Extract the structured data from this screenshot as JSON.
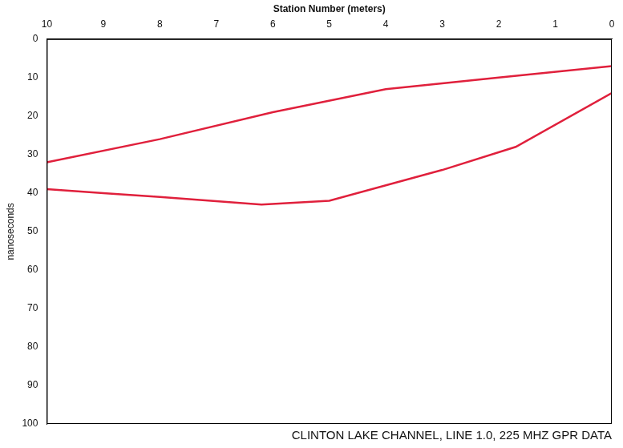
{
  "chart_data": {
    "type": "line",
    "title": "CLINTON LAKE CHANNEL, LINE 1.0, 225 MHZ GPR DATA",
    "x_label": "Station Number (meters)",
    "y_label": "nanoseconds",
    "series": [
      {
        "color": "#e0203c",
        "line_style": "solid",
        "marker": "none",
        "x": [
          10,
          8,
          6,
          4,
          2,
          0
        ],
        "values": [
          32,
          26,
          19,
          13,
          10,
          7
        ]
      },
      {
        "color": "#e0203c",
        "line_style": "solid",
        "marker": "none",
        "x": [
          10,
          9,
          8,
          6.2,
          5,
          3,
          1.7,
          0
        ],
        "values": [
          39,
          40,
          41,
          43,
          42,
          34,
          28,
          14
        ]
      }
    ],
    "xlim": [
      0,
      10
    ],
    "xticks": [
      0,
      1,
      2,
      3,
      4,
      5,
      6,
      7,
      8,
      9,
      10
    ],
    "ylim": [
      0,
      100
    ],
    "yticks": [
      0,
      10,
      20,
      30,
      40,
      50,
      60,
      70,
      80,
      90,
      100
    ],
    "grid": false
  }
}
